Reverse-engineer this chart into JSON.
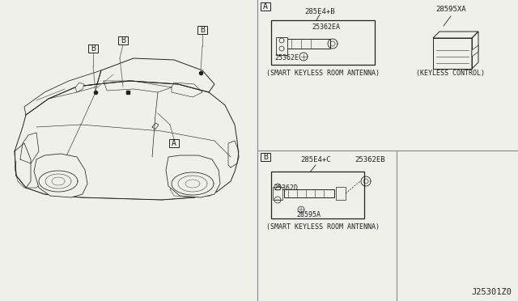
{
  "bg_color": "#f0f0eb",
  "line_color": "#222222",
  "text_color": "#222222",
  "diagram_id": "J25301Z0",
  "sections": {
    "A_label": "A",
    "A_part1": "285E4+B",
    "A_part2": "25362EA",
    "A_part3": "25362E",
    "A_caption": "(SMART KEYLESS ROOM ANTENNA)",
    "B_label": "B",
    "B_part1": "285E4+C",
    "B_part2": "25362EB",
    "B_part3": "25362D",
    "B_part4": "28595A",
    "B_caption": "(SMART KEYLESS ROOM ANTENNA)",
    "C_part1": "28595XA",
    "C_caption": "(KEYLESS CONTROL)"
  },
  "figsize": [
    6.4,
    3.72
  ],
  "dpi": 100
}
